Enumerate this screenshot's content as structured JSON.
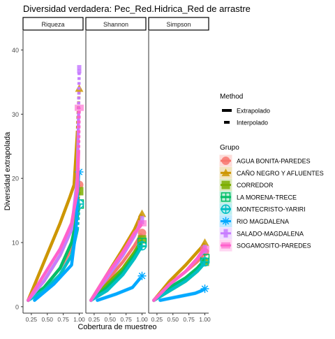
{
  "chart_data": {
    "type": "line",
    "title": "Diversidad verdadera: Pec_Red.Hidrica_Red de arrastre",
    "xlabel": "Cobertura de muestreo",
    "ylabel": "Diversidad extrapolada",
    "xlim": [
      0.12,
      1.06
    ],
    "ylim": [
      -1,
      43
    ],
    "x_ticks": [
      0.25,
      0.5,
      0.75,
      1.0
    ],
    "x_tick_labels": [
      "0.25",
      "0.50",
      "0.75",
      "1.00"
    ],
    "y_ticks": [
      0,
      10,
      20,
      30,
      40
    ],
    "y_tick_labels": [
      "0",
      "10",
      "20",
      "30",
      "40"
    ],
    "grid": false,
    "facets": [
      "Riqueza",
      "Shannon",
      "Simpson"
    ],
    "legend": {
      "placement": "right",
      "method_title": "Method",
      "method_entries": [
        "Extrapolado",
        "Interpolado"
      ],
      "group_title": "Grupo"
    },
    "series": [
      {
        "name": "AGUA BONITA-PAREDES",
        "color": "#F8766D",
        "shape": "circle",
        "facets": [
          {
            "x": [
              0.2,
              0.45,
              0.7,
              0.88,
              0.97,
              1.0
            ],
            "y": [
              1,
              3,
              6,
              9,
              15,
              19
            ]
          },
          {
            "x": [
              0.2,
              0.45,
              0.7,
              0.88,
              0.97,
              1.0
            ],
            "y": [
              1,
              4,
              7,
              9.5,
              11,
              11.5
            ]
          },
          {
            "x": [
              0.2,
              0.45,
              0.7,
              0.88,
              0.97,
              1.0
            ],
            "y": [
              1,
              3.5,
              5.5,
              7,
              8,
              8.5
            ]
          }
        ]
      },
      {
        "name": "CAÑO NEGRO Y AFLUENTES",
        "color": "#CD9600",
        "shape": "triangle",
        "facets": [
          {
            "x": [
              0.2,
              0.45,
              0.7,
              0.85,
              0.92,
              0.97,
              1.0
            ],
            "y": [
              1,
              7,
              13,
              17,
              19,
              27,
              34
            ]
          },
          {
            "x": [
              0.2,
              0.45,
              0.7,
              0.88,
              0.97,
              1.0
            ],
            "y": [
              1,
              5,
              9,
              12,
              14,
              14.5
            ]
          },
          {
            "x": [
              0.2,
              0.45,
              0.7,
              0.88,
              0.97,
              1.0
            ],
            "y": [
              1,
              4,
              6.5,
              8.5,
              9.5,
              10
            ]
          }
        ]
      },
      {
        "name": "CORREDOR",
        "color": "#7CAE00",
        "shape": "square",
        "facets": [
          {
            "x": [
              0.2,
              0.45,
              0.7,
              0.88,
              0.97,
              1.0
            ],
            "y": [
              1,
              4,
              8,
              12,
              16,
              18
            ]
          },
          {
            "x": [
              0.2,
              0.45,
              0.7,
              0.88,
              0.97,
              1.0
            ],
            "y": [
              1,
              3.5,
              6,
              8.5,
              10,
              10.5
            ]
          },
          {
            "x": [
              0.2,
              0.45,
              0.7,
              0.88,
              0.97,
              1.0
            ],
            "y": [
              1,
              2.5,
              4,
              5.5,
              6.5,
              7
            ]
          }
        ]
      },
      {
        "name": "LA MORENA-TRECE",
        "color": "#00BE67",
        "shape": "cross-square",
        "facets": [
          {
            "x": [
              0.2,
              0.45,
              0.7,
              0.88,
              0.97,
              1.0
            ],
            "y": [
              1,
              3,
              6,
              10,
              14,
              16
            ]
          },
          {
            "x": [
              0.2,
              0.45,
              0.7,
              0.88,
              0.97,
              1.0
            ],
            "y": [
              1,
              3,
              5.5,
              8,
              9.5,
              10
            ]
          },
          {
            "x": [
              0.2,
              0.45,
              0.7,
              0.88,
              0.97,
              1.0
            ],
            "y": [
              1,
              3,
              4.5,
              6,
              7,
              7.5
            ]
          }
        ]
      },
      {
        "name": "MONTECRISTO-YARIRI",
        "color": "#00BFC4",
        "shape": "circle-cross",
        "facets": [
          {
            "x": [
              0.2,
              0.45,
              0.7,
              0.88,
              0.97,
              1.0
            ],
            "y": [
              1,
              2.5,
              5,
              8,
              12,
              16
            ]
          },
          {
            "x": [
              0.2,
              0.45,
              0.7,
              0.88,
              0.97,
              1.0
            ],
            "y": [
              1,
              2.5,
              5,
              7.5,
              9,
              9.5
            ]
          },
          {
            "x": [
              0.2,
              0.45,
              0.7,
              0.88,
              0.97,
              1.0
            ],
            "y": [
              1,
              2.5,
              4,
              5.5,
              6.5,
              7
            ]
          }
        ]
      },
      {
        "name": "RIO MAGDALENA",
        "color": "#00A9FF",
        "shape": "asterisk",
        "facets": [
          {
            "x": [
              0.3,
              0.6,
              0.88,
              0.95,
              0.97,
              0.99,
              1.0
            ],
            "y": [
              1,
              3.5,
              6.5,
              12,
              17,
              20.5,
              21
            ]
          },
          {
            "x": [
              0.3,
              0.6,
              0.85,
              0.95,
              1.0
            ],
            "y": [
              1,
              2,
              3,
              4.2,
              4.8
            ]
          },
          {
            "x": [
              0.3,
              0.6,
              0.85,
              0.95,
              1.0
            ],
            "y": [
              1,
              1.6,
              2.1,
              2.5,
              2.8
            ]
          }
        ]
      },
      {
        "name": "SALADO-MAGDALENA",
        "color": "#C77CFF",
        "shape": "dash",
        "facets": [
          {
            "x": [
              0.2,
              0.45,
              0.7,
              0.88,
              0.97,
              0.99,
              1.0
            ],
            "y": [
              1,
              4,
              8,
              12,
              20,
              30,
              37
            ]
          },
          {
            "x": [
              0.2,
              0.45,
              0.7,
              0.88,
              0.97,
              1.0
            ],
            "y": [
              1,
              4.5,
              8,
              11,
              13,
              13.5
            ]
          },
          {
            "x": [
              0.2,
              0.45,
              0.7,
              0.88,
              0.97,
              1.0
            ],
            "y": [
              1,
              3.5,
              5.5,
              7.5,
              8.5,
              9
            ]
          }
        ]
      },
      {
        "name": "SOGAMOSITO-PAREDES",
        "color": "#FF61CC",
        "shape": "square-outline",
        "facets": [
          {
            "x": [
              0.2,
              0.45,
              0.7,
              0.88,
              0.97,
              0.99,
              1.0
            ],
            "y": [
              1,
              5,
              9,
              13,
              18,
              24,
              31
            ]
          },
          {
            "x": [
              0.2,
              0.45,
              0.7,
              0.88,
              0.97,
              1.0
            ],
            "y": [
              1,
              5,
              8.5,
              11.5,
              12.5,
              13
            ]
          },
          {
            "x": [
              0.2,
              0.45,
              0.7,
              0.88,
              0.97,
              1.0
            ],
            "y": [
              1,
              3.5,
              5.5,
              7.5,
              8.8,
              9
            ]
          }
        ]
      }
    ]
  }
}
